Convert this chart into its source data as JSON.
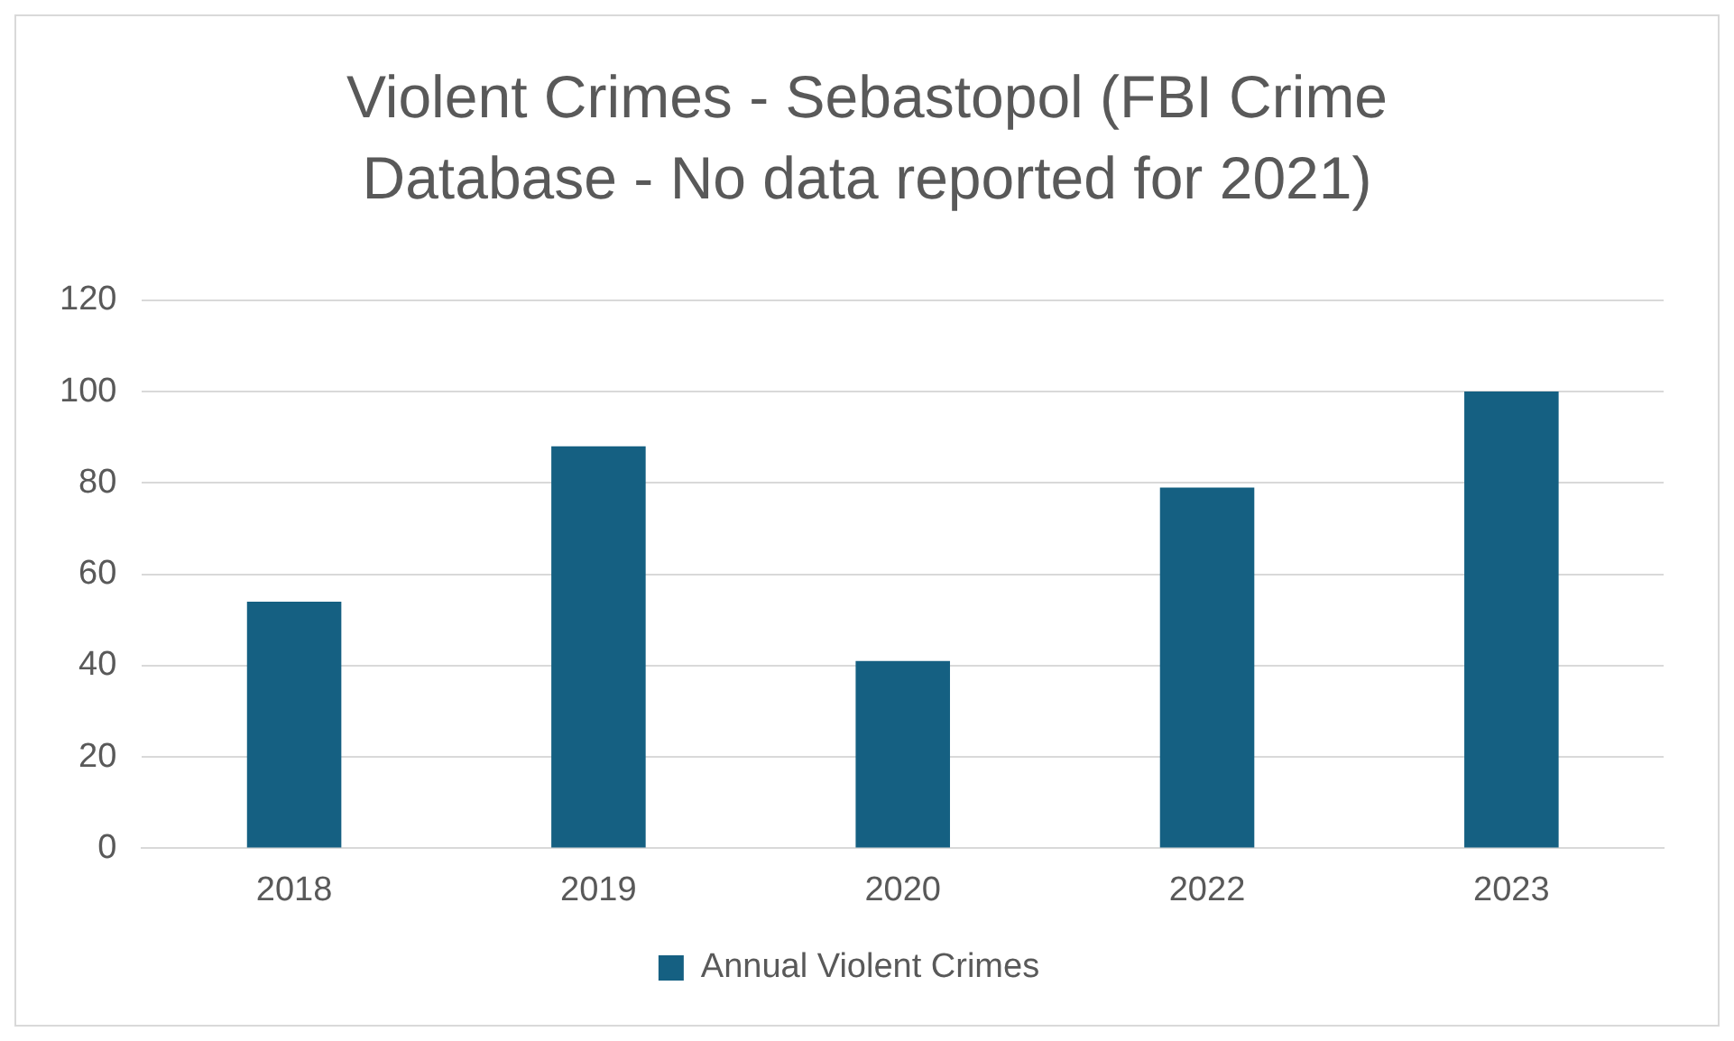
{
  "chart_data": {
    "type": "bar",
    "title": "Violent Crimes - Sebastopol (FBI Crime Database - No data reported for 2021)",
    "categories": [
      "2018",
      "2019",
      "2020",
      "2022",
      "2023"
    ],
    "series": [
      {
        "name": "Annual Violent Crimes",
        "color": "#156082",
        "values": [
          54,
          88,
          41,
          79,
          100
        ]
      }
    ],
    "ylim": [
      0,
      120
    ],
    "yticks": [
      0,
      20,
      40,
      60,
      80,
      100,
      120
    ],
    "grid": "y",
    "legend": "bottom"
  }
}
